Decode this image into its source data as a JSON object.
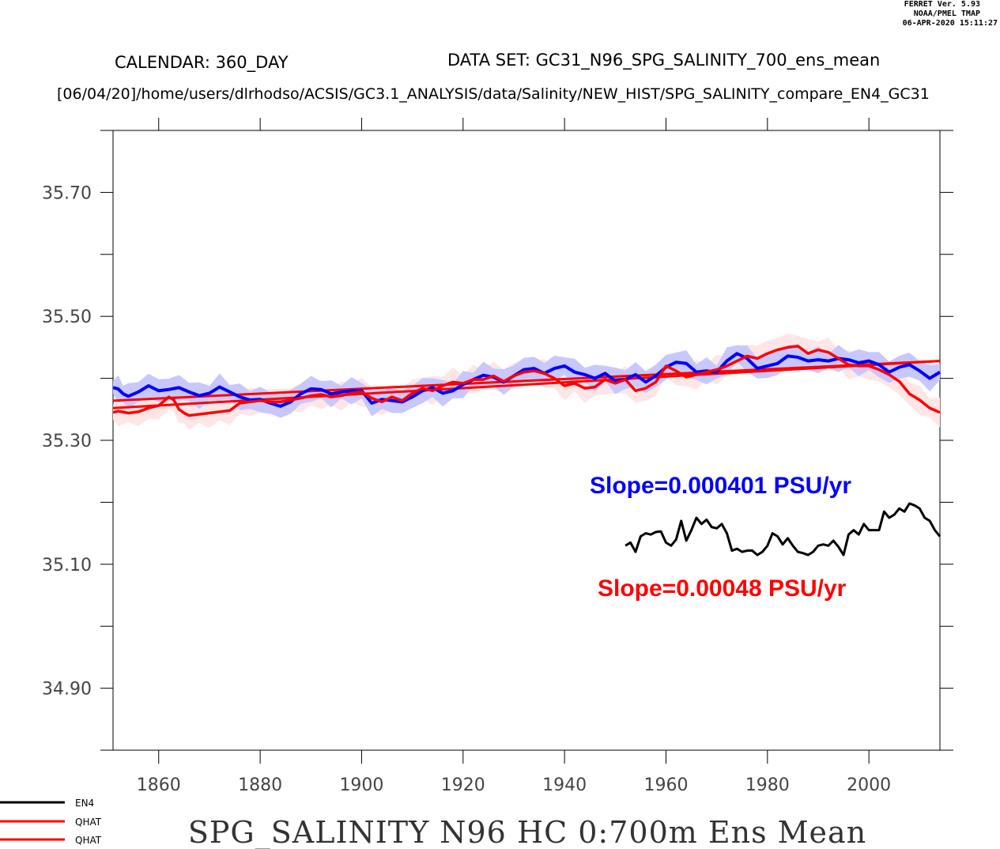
{
  "header": {
    "stamp_line1": "FERRET Ver. 5.93",
    "stamp_line2": "NOAA/PMEL TMAP",
    "stamp_line3": "06-APR-2020 15:11:27",
    "calendar": "CALENDAR: 360_DAY",
    "dataset": "DATA SET: GC31_N96_SPG_SALINITY_700_ens_mean",
    "path": "[06/04/20]/home/users/dlrhodso/ACSIS/GC3.1_ANALYSIS/data/Salinity/NEW_HIST/SPG_SALINITY_compare_EN4_GC31"
  },
  "colors": {
    "en4": "#000000",
    "model_mean": "#0000ff",
    "qhat": "#ff0000",
    "blue_band": "#c8c8ff",
    "red_band": "#ffe6e6"
  },
  "annotations": {
    "slope_blue": "Slope=0.000401 PSU/yr",
    "slope_red": "Slope=0.00048 PSU/yr"
  },
  "legend": [
    {
      "label": "EN4",
      "color": "#000000"
    },
    {
      "label": "QHAT",
      "color": "#ff0000"
    },
    {
      "label": "QHAT",
      "color": "#ff0000"
    }
  ],
  "chart_data": {
    "type": "line",
    "title": "SPG_SALINITY N96 HC 0:700m Ens Mean",
    "xlabel": "",
    "ylabel": "",
    "xlim": [
      1851,
      2014
    ],
    "ylim": [
      34.8,
      35.8
    ],
    "x_ticks": [
      1860,
      1880,
      1900,
      1920,
      1940,
      1960,
      1980,
      2000
    ],
    "y_ticks": [
      34.9,
      35.1,
      35.3,
      35.5,
      35.7
    ],
    "y_tick_labels": [
      "34.90",
      "35.10",
      "35.30",
      "35.50",
      "35.70"
    ],
    "grid": false,
    "series": [
      {
        "name": "EN4",
        "color": "#000000",
        "x": [
          1952,
          1953,
          1954,
          1955,
          1956,
          1957,
          1958,
          1959,
          1960,
          1961,
          1962,
          1963,
          1964,
          1965,
          1966,
          1967,
          1968,
          1969,
          1970,
          1971,
          1972,
          1973,
          1974,
          1975,
          1976,
          1977,
          1978,
          1979,
          1980,
          1981,
          1982,
          1983,
          1984,
          1985,
          1986,
          1987,
          1988,
          1989,
          1990,
          1991,
          1992,
          1993,
          1994,
          1995,
          1996,
          1997,
          1998,
          1999,
          2000,
          2001,
          2002,
          2003,
          2004,
          2005,
          2006,
          2007,
          2008,
          2009,
          2010,
          2011,
          2012,
          2013,
          2014
        ],
        "values": [
          35.13,
          35.135,
          35.12,
          35.145,
          35.15,
          35.148,
          35.152,
          35.153,
          35.135,
          35.13,
          35.14,
          35.17,
          35.138,
          35.155,
          35.175,
          35.165,
          35.172,
          35.16,
          35.158,
          35.165,
          35.15,
          35.122,
          35.125,
          35.12,
          35.122,
          35.122,
          35.115,
          35.12,
          35.13,
          35.15,
          35.145,
          35.132,
          35.142,
          35.13,
          35.12,
          35.118,
          35.115,
          35.12,
          35.13,
          35.132,
          35.13,
          35.138,
          35.128,
          35.115,
          35.148,
          35.155,
          35.148,
          35.165,
          35.155,
          35.155,
          35.155,
          35.185,
          35.175,
          35.18,
          35.19,
          35.185,
          35.198,
          35.195,
          35.19,
          35.175,
          35.17,
          35.155,
          35.145
        ]
      },
      {
        "name": "",
        "color": "#0000ff",
        "x": [
          1851,
          1852,
          1853,
          1854,
          1856,
          1858,
          1860,
          1862,
          1864,
          1866,
          1868,
          1870,
          1872,
          1874,
          1876,
          1878,
          1880,
          1882,
          1884,
          1886,
          1888,
          1890,
          1892,
          1894,
          1896,
          1898,
          1900,
          1902,
          1904,
          1906,
          1908,
          1910,
          1912,
          1914,
          1916,
          1918,
          1920,
          1922,
          1924,
          1926,
          1928,
          1930,
          1932,
          1934,
          1936,
          1938,
          1940,
          1942,
          1944,
          1946,
          1948,
          1950,
          1952,
          1954,
          1956,
          1958,
          1960,
          1962,
          1964,
          1966,
          1968,
          1970,
          1972,
          1974,
          1976,
          1978,
          1980,
          1982,
          1984,
          1986,
          1988,
          1990,
          1992,
          1994,
          1996,
          1998,
          2000,
          2002,
          2004,
          2006,
          2008,
          2010,
          2012,
          2014
        ],
        "values": [
          35.385,
          35.383,
          35.375,
          35.371,
          35.378,
          35.388,
          35.38,
          35.382,
          35.385,
          35.378,
          35.372,
          35.376,
          35.386,
          35.378,
          35.37,
          35.365,
          35.366,
          35.36,
          35.355,
          35.362,
          35.375,
          35.383,
          35.382,
          35.375,
          35.378,
          35.38,
          35.38,
          35.36,
          35.366,
          35.364,
          35.362,
          35.37,
          35.38,
          35.385,
          35.376,
          35.38,
          35.39,
          35.398,
          35.405,
          35.402,
          35.394,
          35.404,
          35.414,
          35.416,
          35.408,
          35.416,
          35.42,
          35.41,
          35.406,
          35.4,
          35.408,
          35.396,
          35.398,
          35.406,
          35.394,
          35.404,
          35.418,
          35.426,
          35.424,
          35.41,
          35.412,
          35.41,
          35.428,
          35.44,
          35.432,
          35.416,
          35.42,
          35.424,
          35.436,
          35.434,
          35.428,
          35.43,
          35.428,
          35.432,
          35.43,
          35.425,
          35.428,
          35.422,
          35.41,
          35.418,
          35.422,
          35.412,
          35.4,
          35.41
        ]
      },
      {
        "name": "QHAT",
        "color": "#ff0000",
        "x": [
          1851,
          1852,
          1854,
          1856,
          1858,
          1860,
          1862,
          1863,
          1864,
          1865,
          1866,
          1868,
          1870,
          1872,
          1874,
          1876,
          1878,
          1880,
          1882,
          1884,
          1886,
          1888,
          1890,
          1892,
          1894,
          1896,
          1898,
          1900,
          1902,
          1904,
          1906,
          1908,
          1910,
          1912,
          1914,
          1916,
          1918,
          1920,
          1922,
          1924,
          1926,
          1928,
          1930,
          1932,
          1934,
          1936,
          1938,
          1940,
          1942,
          1944,
          1946,
          1948,
          1950,
          1952,
          1954,
          1956,
          1958,
          1960,
          1962,
          1964,
          1966,
          1968,
          1970,
          1972,
          1974,
          1976,
          1978,
          1980,
          1982,
          1984,
          1986,
          1988,
          1990,
          1992,
          1994,
          1996,
          1998,
          2000,
          2002,
          2004,
          2006,
          2008,
          2010,
          2012,
          2014
        ],
        "values": [
          35.345,
          35.347,
          35.344,
          35.346,
          35.352,
          35.356,
          35.37,
          35.365,
          35.35,
          35.344,
          35.34,
          35.342,
          35.344,
          35.346,
          35.348,
          35.36,
          35.362,
          35.364,
          35.362,
          35.362,
          35.365,
          35.368,
          35.372,
          35.374,
          35.37,
          35.372,
          35.376,
          35.378,
          35.368,
          35.362,
          35.37,
          35.364,
          35.376,
          35.384,
          35.38,
          35.388,
          35.394,
          35.392,
          35.398,
          35.398,
          35.404,
          35.395,
          35.404,
          35.41,
          35.412,
          35.408,
          35.4,
          35.388,
          35.392,
          35.384,
          35.386,
          35.398,
          35.392,
          35.398,
          35.38,
          35.384,
          35.394,
          35.42,
          35.412,
          35.402,
          35.406,
          35.41,
          35.414,
          35.42,
          35.428,
          35.436,
          35.432,
          35.44,
          35.446,
          35.45,
          35.452,
          35.44,
          35.446,
          35.442,
          35.432,
          35.422,
          35.42,
          35.42,
          35.414,
          35.406,
          35.395,
          35.375,
          35.365,
          35.352,
          35.345
        ]
      },
      {
        "name": "",
        "color": "#ff0000",
        "x": [
          1851,
          2014
        ],
        "values": [
          35.352,
          35.428
        ]
      },
      {
        "name": "",
        "color": "#ff0000",
        "x": [
          1851,
          2014
        ],
        "values": [
          35.364,
          35.428
        ]
      }
    ]
  }
}
